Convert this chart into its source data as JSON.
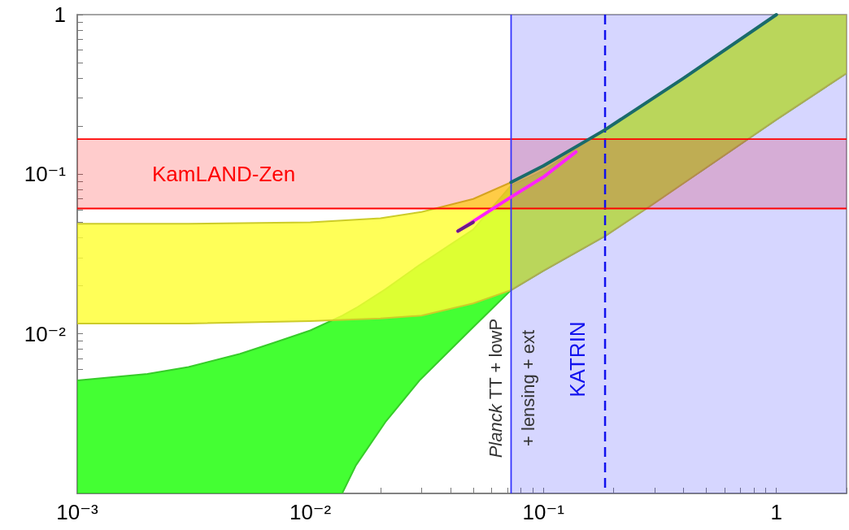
{
  "chart_data": {
    "type": "area",
    "log": "xy",
    "grid": false,
    "xlim": [
      0.001,
      2
    ],
    "ylim": [
      0.001,
      1
    ],
    "xticks": [
      {
        "value": 0.001,
        "label": "10⁻³"
      },
      {
        "value": 0.002,
        "label": null
      },
      {
        "value": 0.003,
        "label": null
      },
      {
        "value": 0.004,
        "label": null
      },
      {
        "value": 0.005,
        "label": null
      },
      {
        "value": 0.006,
        "label": null
      },
      {
        "value": 0.007,
        "label": null
      },
      {
        "value": 0.008,
        "label": null
      },
      {
        "value": 0.009,
        "label": null
      },
      {
        "value": 0.01,
        "label": "10⁻²"
      },
      {
        "value": 0.02,
        "label": null
      },
      {
        "value": 0.03,
        "label": null
      },
      {
        "value": 0.04,
        "label": null
      },
      {
        "value": 0.05,
        "label": null
      },
      {
        "value": 0.06,
        "label": null
      },
      {
        "value": 0.07,
        "label": null
      },
      {
        "value": 0.08,
        "label": null
      },
      {
        "value": 0.09,
        "label": null
      },
      {
        "value": 0.1,
        "label": "10⁻¹"
      },
      {
        "value": 0.2,
        "label": null
      },
      {
        "value": 0.3,
        "label": null
      },
      {
        "value": 0.4,
        "label": null
      },
      {
        "value": 0.5,
        "label": null
      },
      {
        "value": 0.6,
        "label": null
      },
      {
        "value": 0.7,
        "label": null
      },
      {
        "value": 0.8,
        "label": null
      },
      {
        "value": 0.9,
        "label": null
      },
      1,
      {
        "value": 2,
        "label": null
      }
    ],
    "yticks": [
      {
        "value": 0.002,
        "label": null
      },
      {
        "value": 0.003,
        "label": null
      },
      {
        "value": 0.004,
        "label": null
      },
      {
        "value": 0.005,
        "label": null
      },
      {
        "value": 0.006,
        "label": null
      },
      {
        "value": 0.007,
        "label": null
      },
      {
        "value": 0.008,
        "label": null
      },
      {
        "value": 0.009,
        "label": null
      },
      {
        "value": 0.01,
        "label": "10⁻²"
      },
      {
        "value": 0.02,
        "label": null
      },
      {
        "value": 0.03,
        "label": null
      },
      {
        "value": 0.04,
        "label": null
      },
      {
        "value": 0.05,
        "label": null
      },
      {
        "value": 0.06,
        "label": null
      },
      {
        "value": 0.07,
        "label": null
      },
      {
        "value": 0.08,
        "label": null
      },
      {
        "value": 0.09,
        "label": null
      },
      {
        "value": 0.1,
        "label": "10⁻¹"
      },
      {
        "value": 0.2,
        "label": null
      },
      {
        "value": 0.3,
        "label": null
      },
      {
        "value": 0.4,
        "label": null
      },
      {
        "value": 0.5,
        "label": null
      },
      {
        "value": 0.6,
        "label": null
      },
      {
        "value": 0.7,
        "label": null
      },
      {
        "value": 0.8,
        "label": null
      },
      {
        "value": 0.9,
        "label": null
      },
      1
    ],
    "series": [
      {
        "color": "#44ff33",
        "x": [
          0.001,
          0.002,
          0.003,
          0.005,
          0.007,
          0.01,
          0.0137,
          0.0157,
          0.021,
          0.0294,
          0.05,
          0.0727,
          0.1,
          0.184,
          0.5,
          1,
          2
        ],
        "values": [
          null,
          null,
          null,
          null,
          null,
          null,
          null,
          null,
          null,
          null,
          null,
          null,
          null,
          null,
          null,
          null,
          null
        ],
        "upper": [
          0.0051,
          0.0056,
          0.0062,
          0.0075,
          0.0088,
          0.0105,
          0.013,
          0.0145,
          0.019,
          0.027,
          0.045,
          0.085,
          0.105,
          0.19,
          0.5,
          1,
          1
        ],
        "lower": [
          0.001,
          0.001,
          0.001,
          0.001,
          0.001,
          0.001,
          0.001,
          0.0015,
          0.0028,
          0.0051,
          0.011,
          0.0188,
          0.0248,
          0.041,
          0.11,
          0.22,
          0.43
        ]
      },
      {
        "color": "#ffff33",
        "x": [
          0.001,
          0.003,
          0.01,
          0.02,
          0.03,
          0.05,
          0.0727,
          0.1,
          0.184,
          0.276,
          0.5,
          1,
          2
        ],
        "values": [
          null,
          null,
          null,
          null,
          null,
          null,
          null,
          null,
          null,
          null,
          null,
          null,
          null
        ],
        "upper": [
          0.049,
          0.049,
          0.05,
          0.053,
          0.058,
          0.07,
          0.089,
          0.113,
          0.19,
          0.28,
          0.5,
          1,
          1
        ],
        "lower": [
          0.0116,
          0.0116,
          0.012,
          0.0125,
          0.013,
          0.0155,
          0.0188,
          0.0248,
          0.041,
          0.0606,
          0.11,
          0.22,
          0.43
        ]
      },
      {
        "type": "line",
        "color": "#1a6b6b",
        "x": [
          0.0727,
          0.1,
          0.184,
          0.4,
          1
        ],
        "values": [
          0.089,
          0.113,
          0.19,
          0.4,
          1
        ]
      },
      {
        "type": "line",
        "color": "#ff22ff",
        "x": [
          0.043,
          0.0727,
          0.1,
          0.138
        ],
        "values": [
          0.044,
          0.072,
          0.096,
          0.138
        ]
      },
      {
        "type": "line",
        "color": "#6a1a8a",
        "x": [
          0.043,
          0.05
        ],
        "values": [
          0.044,
          0.05
        ]
      }
    ],
    "bands": [
      {
        "axis": "y",
        "from": 0.061,
        "to": 0.166,
        "label": "KamLAND-Zen",
        "color": "#ff0000"
      },
      {
        "axis": "x",
        "from": 0.0727,
        "to": 2,
        "label": "Planck TT + lowP\n+ lensing + ext",
        "color": "#3333ff"
      }
    ],
    "ref_lines": [
      {
        "axis": "x",
        "value": 0.184,
        "label": "KATRIN",
        "color": "#1111ee",
        "line_style": "dashed"
      },
      {
        "axis": "y",
        "value": 0.061,
        "color": "#ff0000",
        "line_style": "solid"
      },
      {
        "axis": "y",
        "value": 0.166,
        "color": "#ff0000",
        "line_style": "solid"
      },
      {
        "axis": "x",
        "value": 0.0727,
        "color": "#3333ff",
        "line_style": "solid"
      }
    ]
  }
}
